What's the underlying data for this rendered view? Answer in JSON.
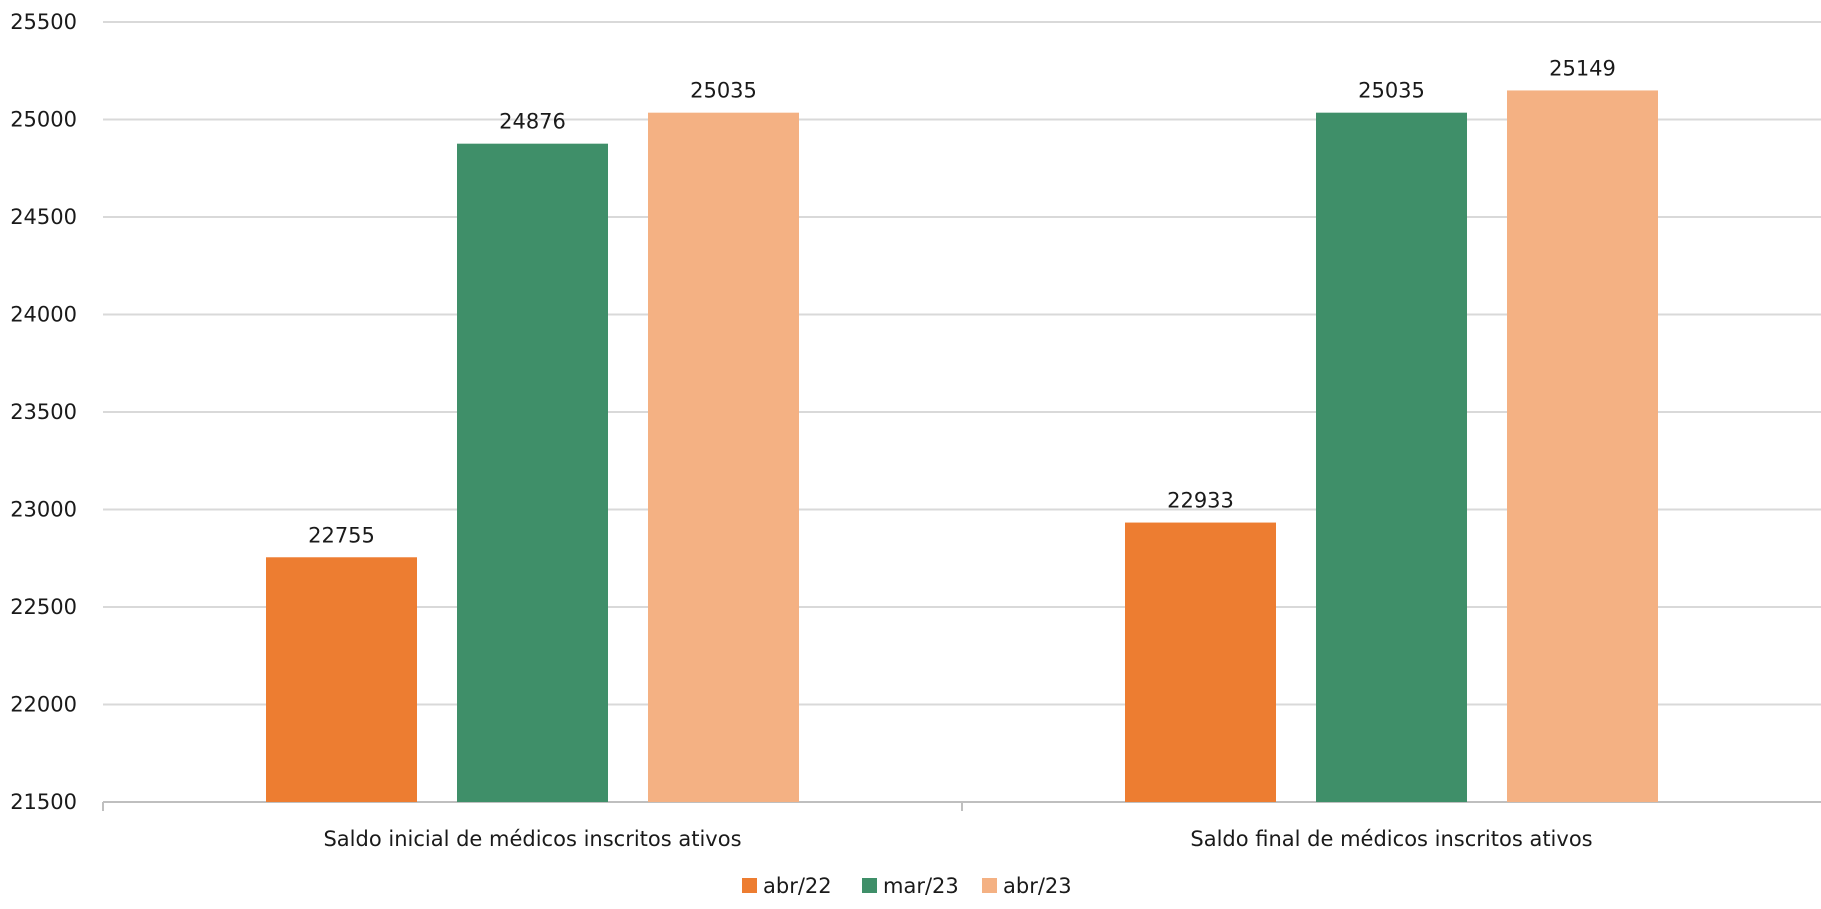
{
  "chart_data": {
    "type": "bar",
    "title": "",
    "xlabel": "",
    "ylabel": "",
    "categories": [
      "Saldo inicial de médicos inscritos ativos",
      "Saldo final de médicos inscritos ativos"
    ],
    "series": [
      {
        "name": "abr/22",
        "values": [
          22755,
          22933
        ],
        "color": "#ED7D31"
      },
      {
        "name": "mar/23",
        "values": [
          24876,
          25035
        ],
        "color": "#3F8F69"
      },
      {
        "name": "abr/23",
        "values": [
          25035,
          25149
        ],
        "color": "#F4B183"
      }
    ],
    "ylim": [
      21500,
      25500
    ],
    "yticks": [
      21500,
      22000,
      22500,
      23000,
      23500,
      24000,
      24500,
      25000,
      25500
    ],
    "grid": true,
    "legend_position": "bottom",
    "data_labels": true
  }
}
